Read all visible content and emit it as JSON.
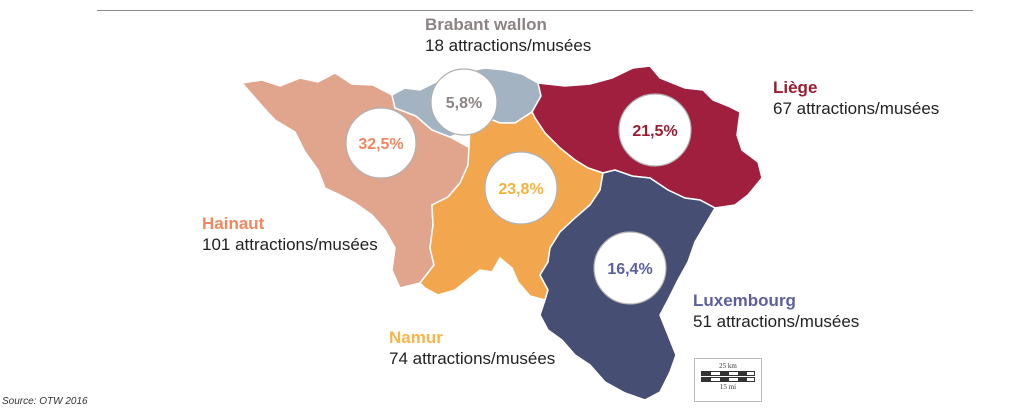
{
  "regions": {
    "brabant": {
      "name": "Brabant wallon",
      "count": "18 attractions/musées",
      "pct": "5,8%",
      "name_color": "#8e8384",
      "fill": "#a3b3c2",
      "pct_color": "#8e8384"
    },
    "liege": {
      "name": "Liège",
      "count": "67 attractions/musées",
      "pct": "21,5%",
      "name_color": "#9b1c31",
      "fill": "#a01f3f",
      "pct_color": "#9b1c31"
    },
    "hainaut": {
      "name": "Hainaut",
      "count": "101 attractions/musées",
      "pct": "32,5%",
      "name_color": "#f0875f",
      "fill": "#e0a58c",
      "pct_color": "#f0875f"
    },
    "namur": {
      "name": "Namur",
      "count": "74 attractions/musées",
      "pct": "23,8%",
      "name_color": "#f7b54a",
      "fill": "#f2a74f",
      "pct_color": "#f2b33b"
    },
    "luxembourg": {
      "name": "Luxembourg",
      "count": "51 attractions/musées",
      "pct": "16,4%",
      "name_color": "#5b5f9c",
      "fill": "#474e73",
      "pct_color": "#5b5f9c"
    }
  },
  "scale": {
    "km": "25 km",
    "mi": "15 mi"
  },
  "source": "Source:  OTW 2016"
}
